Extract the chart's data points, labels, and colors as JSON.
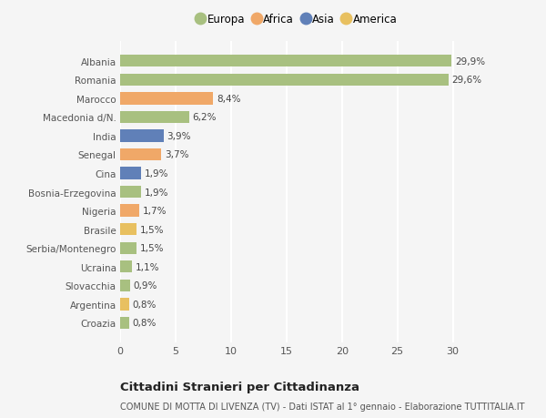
{
  "categories": [
    "Albania",
    "Romania",
    "Marocco",
    "Macedonia d/N.",
    "India",
    "Senegal",
    "Cina",
    "Bosnia-Erzegovina",
    "Nigeria",
    "Brasile",
    "Serbia/Montenegro",
    "Ucraina",
    "Slovacchia",
    "Argentina",
    "Croazia"
  ],
  "values": [
    29.9,
    29.6,
    8.4,
    6.2,
    3.9,
    3.7,
    1.9,
    1.9,
    1.7,
    1.5,
    1.5,
    1.1,
    0.9,
    0.8,
    0.8
  ],
  "bar_colors": [
    "#a8c080",
    "#a8c080",
    "#f0a868",
    "#a8c080",
    "#6080b8",
    "#f0a868",
    "#6080b8",
    "#a8c080",
    "#f0a868",
    "#e8c060",
    "#a8c080",
    "#a8c080",
    "#a8c080",
    "#e8c060",
    "#a8c080"
  ],
  "labels": [
    "29,9%",
    "29,6%",
    "8,4%",
    "6,2%",
    "3,9%",
    "3,7%",
    "1,9%",
    "1,9%",
    "1,7%",
    "1,5%",
    "1,5%",
    "1,1%",
    "0,9%",
    "0,8%",
    "0,8%"
  ],
  "legend_labels": [
    "Europa",
    "Africa",
    "Asia",
    "America"
  ],
  "legend_colors": [
    "#a8c080",
    "#f0a868",
    "#6080b8",
    "#e8c060"
  ],
  "xlim": [
    0,
    32
  ],
  "xticks": [
    0,
    5,
    10,
    15,
    20,
    25,
    30
  ],
  "title": "Cittadini Stranieri per Cittadinanza",
  "subtitle": "COMUNE DI MOTTA DI LIVENZA (TV) - Dati ISTAT al 1° gennaio - Elaborazione TUTTITALIA.IT",
  "bg_color": "#f5f5f5",
  "grid_color": "#ffffff",
  "bar_height": 0.65,
  "label_fontsize": 7.5,
  "ytick_fontsize": 7.5,
  "xtick_fontsize": 8,
  "title_fontsize": 9.5,
  "subtitle_fontsize": 7
}
